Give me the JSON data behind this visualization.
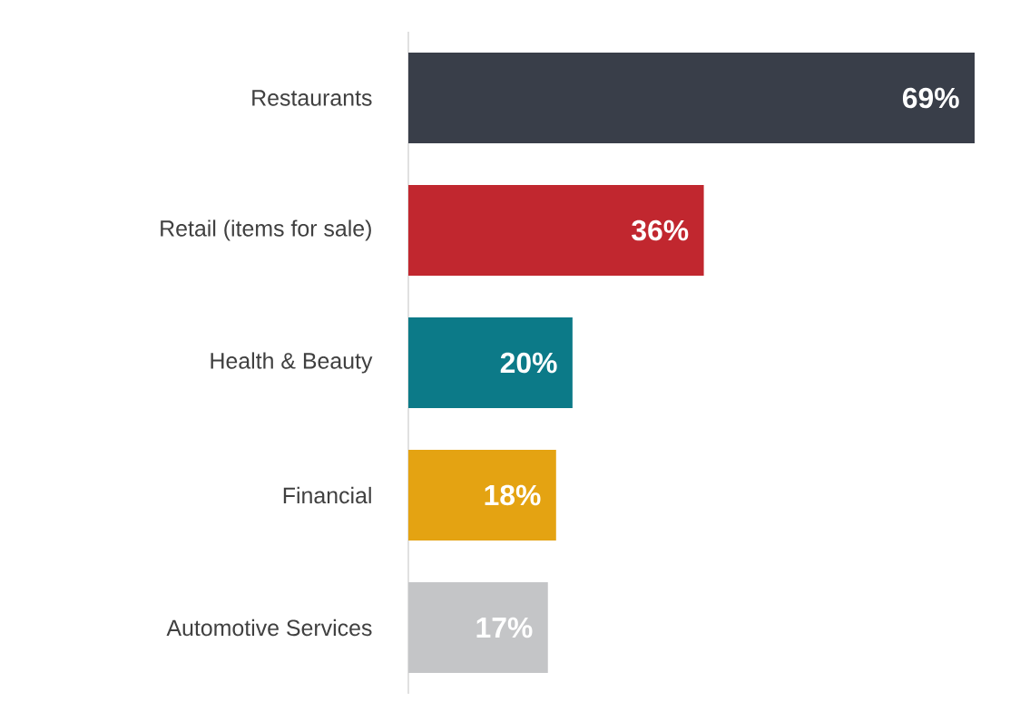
{
  "chart_data": {
    "type": "bar",
    "orientation": "horizontal",
    "categories": [
      "Restaurants",
      "Retail (items for sale)",
      "Health & Beauty",
      "Financial",
      "Automotive Services"
    ],
    "values": [
      69,
      36,
      20,
      18,
      17
    ],
    "colors": [
      "#393e49",
      "#c1272f",
      "#0c7a88",
      "#e4a312",
      "#c4c5c7"
    ],
    "value_labels": [
      "69%",
      "36%",
      "20%",
      "18%",
      "17%"
    ]
  }
}
